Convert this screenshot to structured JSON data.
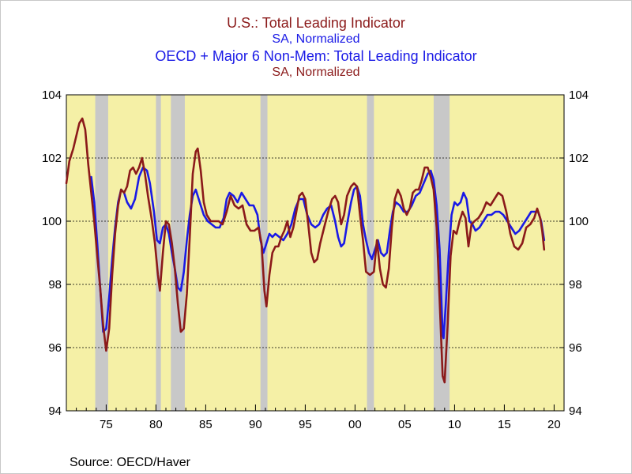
{
  "chart_data": {
    "type": "line",
    "title_lines": [
      {
        "text": "U.S.: Total Leading Indicator",
        "color": "#8b1a1a"
      },
      {
        "text": "SA, Normalized",
        "color": "#1a1ae6"
      },
      {
        "text": "OECD + Major 6 Non-Mem: Total Leading Indicator",
        "color": "#1a1ae6"
      },
      {
        "text": "SA, Normalized",
        "color": "#8b1a1a"
      }
    ],
    "source": "Source:  OECD/Haver",
    "xlim": [
      1971,
      2021
    ],
    "ylim": [
      94,
      104
    ],
    "x_ticks": [
      1975,
      1980,
      1985,
      1990,
      1995,
      2000,
      2005,
      2010,
      2015,
      2020
    ],
    "x_tick_labels": [
      "75",
      "80",
      "85",
      "90",
      "95",
      "00",
      "05",
      "10",
      "15",
      "20"
    ],
    "y_ticks": [
      94,
      96,
      98,
      100,
      102,
      104
    ],
    "y_tick_labels": [
      "94",
      "96",
      "98",
      "100",
      "102",
      "104"
    ],
    "grid": "horizontal dashed",
    "background_color": "#f5f0a6",
    "recessions": [
      [
        1973.9,
        1975.2
      ],
      [
        1980.0,
        1980.5
      ],
      [
        1981.5,
        1982.9
      ],
      [
        1990.5,
        1991.2
      ],
      [
        2001.2,
        2001.9
      ],
      [
        2007.9,
        2009.5
      ]
    ],
    "series": [
      {
        "name": "U.S.: Total Leading Indicator",
        "color": "#8b1a1a",
        "points": [
          [
            1971.0,
            101.2
          ],
          [
            1971.3,
            101.9
          ],
          [
            1971.7,
            102.3
          ],
          [
            1972.0,
            102.7
          ],
          [
            1972.3,
            103.1
          ],
          [
            1972.6,
            103.25
          ],
          [
            1972.9,
            102.9
          ],
          [
            1973.2,
            101.8
          ],
          [
            1973.5,
            100.9
          ],
          [
            1973.8,
            100.0
          ],
          [
            1974.1,
            98.9
          ],
          [
            1974.4,
            97.9
          ],
          [
            1974.7,
            96.7
          ],
          [
            1975.0,
            95.9
          ],
          [
            1975.3,
            96.6
          ],
          [
            1975.6,
            98.3
          ],
          [
            1975.9,
            99.6
          ],
          [
            1976.2,
            100.5
          ],
          [
            1976.5,
            101.0
          ],
          [
            1976.8,
            100.9
          ],
          [
            1977.1,
            101.1
          ],
          [
            1977.4,
            101.6
          ],
          [
            1977.7,
            101.7
          ],
          [
            1978.0,
            101.5
          ],
          [
            1978.3,
            101.7
          ],
          [
            1978.6,
            102.0
          ],
          [
            1978.9,
            101.5
          ],
          [
            1979.2,
            100.8
          ],
          [
            1979.6,
            100.0
          ],
          [
            1979.9,
            99.3
          ],
          [
            1980.2,
            98.3
          ],
          [
            1980.4,
            97.8
          ],
          [
            1980.7,
            99.0
          ],
          [
            1981.0,
            100.0
          ],
          [
            1981.3,
            99.9
          ],
          [
            1981.6,
            99.3
          ],
          [
            1981.9,
            98.5
          ],
          [
            1982.2,
            97.4
          ],
          [
            1982.5,
            96.5
          ],
          [
            1982.8,
            96.6
          ],
          [
            1983.1,
            97.7
          ],
          [
            1983.4,
            99.5
          ],
          [
            1983.7,
            101.5
          ],
          [
            1984.0,
            102.2
          ],
          [
            1984.2,
            102.3
          ],
          [
            1984.5,
            101.6
          ],
          [
            1984.8,
            100.6
          ],
          [
            1985.1,
            100.2
          ],
          [
            1985.5,
            100.0
          ],
          [
            1985.9,
            100.0
          ],
          [
            1986.3,
            100.0
          ],
          [
            1986.7,
            99.9
          ],
          [
            1987.1,
            100.3
          ],
          [
            1987.5,
            100.8
          ],
          [
            1987.9,
            100.5
          ],
          [
            1988.3,
            100.4
          ],
          [
            1988.7,
            100.5
          ],
          [
            1989.1,
            99.9
          ],
          [
            1989.5,
            99.7
          ],
          [
            1989.9,
            99.7
          ],
          [
            1990.3,
            99.8
          ],
          [
            1990.6,
            99.3
          ],
          [
            1990.9,
            97.8
          ],
          [
            1991.1,
            97.3
          ],
          [
            1991.4,
            98.3
          ],
          [
            1991.7,
            99.0
          ],
          [
            1992.0,
            99.2
          ],
          [
            1992.3,
            99.2
          ],
          [
            1992.6,
            99.5
          ],
          [
            1992.9,
            99.7
          ],
          [
            1993.2,
            100.0
          ],
          [
            1993.5,
            99.5
          ],
          [
            1993.8,
            99.8
          ],
          [
            1994.1,
            100.3
          ],
          [
            1994.4,
            100.8
          ],
          [
            1994.7,
            100.9
          ],
          [
            1995.0,
            100.7
          ],
          [
            1995.3,
            99.9
          ],
          [
            1995.6,
            99.0
          ],
          [
            1995.9,
            98.7
          ],
          [
            1996.2,
            98.8
          ],
          [
            1996.5,
            99.3
          ],
          [
            1996.9,
            99.8
          ],
          [
            1997.3,
            100.3
          ],
          [
            1997.7,
            100.7
          ],
          [
            1998.0,
            100.8
          ],
          [
            1998.3,
            100.6
          ],
          [
            1998.6,
            99.9
          ],
          [
            1998.9,
            100.2
          ],
          [
            1999.2,
            100.8
          ],
          [
            1999.6,
            101.1
          ],
          [
            1999.9,
            101.2
          ],
          [
            2000.2,
            101.1
          ],
          [
            2000.5,
            100.2
          ],
          [
            2000.8,
            99.4
          ],
          [
            2001.1,
            98.4
          ],
          [
            2001.5,
            98.3
          ],
          [
            2001.9,
            98.4
          ],
          [
            2002.2,
            99.4
          ],
          [
            2002.5,
            98.5
          ],
          [
            2002.8,
            98.0
          ],
          [
            2003.1,
            97.9
          ],
          [
            2003.4,
            98.5
          ],
          [
            2003.7,
            99.8
          ],
          [
            2004.0,
            100.7
          ],
          [
            2004.3,
            101.0
          ],
          [
            2004.6,
            100.8
          ],
          [
            2004.9,
            100.4
          ],
          [
            2005.2,
            100.2
          ],
          [
            2005.5,
            100.4
          ],
          [
            2005.8,
            100.9
          ],
          [
            2006.1,
            101.0
          ],
          [
            2006.4,
            101.0
          ],
          [
            2006.7,
            101.3
          ],
          [
            2007.0,
            101.7
          ],
          [
            2007.3,
            101.7
          ],
          [
            2007.6,
            101.4
          ],
          [
            2007.9,
            101.0
          ],
          [
            2008.2,
            99.8
          ],
          [
            2008.5,
            97.5
          ],
          [
            2008.8,
            95.1
          ],
          [
            2009.0,
            94.9
          ],
          [
            2009.3,
            96.7
          ],
          [
            2009.6,
            98.9
          ],
          [
            2009.9,
            99.7
          ],
          [
            2010.2,
            99.6
          ],
          [
            2010.5,
            100.0
          ],
          [
            2010.8,
            100.3
          ],
          [
            2011.1,
            100.1
          ],
          [
            2011.4,
            99.2
          ],
          [
            2011.7,
            99.9
          ],
          [
            2012.0,
            100.0
          ],
          [
            2012.4,
            100.1
          ],
          [
            2012.8,
            100.3
          ],
          [
            2013.2,
            100.6
          ],
          [
            2013.6,
            100.5
          ],
          [
            2014.0,
            100.7
          ],
          [
            2014.4,
            100.9
          ],
          [
            2014.8,
            100.8
          ],
          [
            2015.2,
            100.3
          ],
          [
            2015.6,
            99.6
          ],
          [
            2016.0,
            99.2
          ],
          [
            2016.4,
            99.1
          ],
          [
            2016.8,
            99.3
          ],
          [
            2017.2,
            99.8
          ],
          [
            2017.6,
            99.9
          ],
          [
            2018.0,
            100.1
          ],
          [
            2018.3,
            100.4
          ],
          [
            2018.6,
            100.1
          ],
          [
            2018.8,
            99.7
          ],
          [
            2019.0,
            99.1
          ]
        ]
      },
      {
        "name": "OECD + Major 6 Non-Mem: Total Leading Indicator",
        "color": "#1a1ae6",
        "points": [
          [
            1973.5,
            101.4
          ],
          [
            1973.8,
            100.6
          ],
          [
            1974.1,
            99.3
          ],
          [
            1974.4,
            97.9
          ],
          [
            1974.7,
            96.5
          ],
          [
            1975.0,
            96.6
          ],
          [
            1975.3,
            97.6
          ],
          [
            1975.6,
            98.8
          ],
          [
            1975.9,
            99.8
          ],
          [
            1976.2,
            100.6
          ],
          [
            1976.5,
            101.0
          ],
          [
            1976.8,
            100.9
          ],
          [
            1977.1,
            100.6
          ],
          [
            1977.5,
            100.4
          ],
          [
            1977.9,
            100.7
          ],
          [
            1978.3,
            101.4
          ],
          [
            1978.7,
            101.7
          ],
          [
            1979.1,
            101.6
          ],
          [
            1979.4,
            101.2
          ],
          [
            1979.8,
            100.3
          ],
          [
            1980.1,
            99.4
          ],
          [
            1980.4,
            99.3
          ],
          [
            1980.7,
            99.8
          ],
          [
            1981.0,
            99.9
          ],
          [
            1981.3,
            99.6
          ],
          [
            1981.6,
            99.0
          ],
          [
            1981.9,
            98.5
          ],
          [
            1982.2,
            97.9
          ],
          [
            1982.5,
            97.8
          ],
          [
            1982.8,
            98.4
          ],
          [
            1983.1,
            99.4
          ],
          [
            1983.4,
            100.2
          ],
          [
            1983.7,
            100.8
          ],
          [
            1984.0,
            101.0
          ],
          [
            1984.4,
            100.6
          ],
          [
            1984.8,
            100.2
          ],
          [
            1985.2,
            100.0
          ],
          [
            1985.6,
            99.9
          ],
          [
            1986.0,
            99.8
          ],
          [
            1986.4,
            99.8
          ],
          [
            1986.8,
            100.1
          ],
          [
            1987.1,
            100.7
          ],
          [
            1987.4,
            100.9
          ],
          [
            1987.8,
            100.8
          ],
          [
            1988.2,
            100.6
          ],
          [
            1988.6,
            100.9
          ],
          [
            1989.0,
            100.7
          ],
          [
            1989.4,
            100.5
          ],
          [
            1989.8,
            100.5
          ],
          [
            1990.2,
            100.2
          ],
          [
            1990.5,
            99.4
          ],
          [
            1990.8,
            99.0
          ],
          [
            1991.1,
            99.3
          ],
          [
            1991.4,
            99.6
          ],
          [
            1991.7,
            99.5
          ],
          [
            1992.0,
            99.6
          ],
          [
            1992.4,
            99.5
          ],
          [
            1992.8,
            99.4
          ],
          [
            1993.2,
            99.6
          ],
          [
            1993.6,
            99.9
          ],
          [
            1994.0,
            100.4
          ],
          [
            1994.4,
            100.7
          ],
          [
            1994.8,
            100.7
          ],
          [
            1995.2,
            100.2
          ],
          [
            1995.6,
            99.9
          ],
          [
            1996.0,
            99.8
          ],
          [
            1996.4,
            99.9
          ],
          [
            1996.8,
            100.2
          ],
          [
            1997.2,
            100.4
          ],
          [
            1997.6,
            100.5
          ],
          [
            1998.0,
            100.0
          ],
          [
            1998.3,
            99.5
          ],
          [
            1998.6,
            99.2
          ],
          [
            1998.9,
            99.3
          ],
          [
            1999.2,
            99.9
          ],
          [
            1999.6,
            100.6
          ],
          [
            1999.9,
            101.0
          ],
          [
            2000.2,
            101.1
          ],
          [
            2000.5,
            100.8
          ],
          [
            2000.8,
            99.9
          ],
          [
            2001.1,
            99.4
          ],
          [
            2001.4,
            99.0
          ],
          [
            2001.7,
            98.8
          ],
          [
            2002.0,
            99.1
          ],
          [
            2002.3,
            99.4
          ],
          [
            2002.6,
            99.0
          ],
          [
            2002.9,
            98.9
          ],
          [
            2003.2,
            99.0
          ],
          [
            2003.5,
            99.7
          ],
          [
            2003.8,
            100.3
          ],
          [
            2004.1,
            100.6
          ],
          [
            2004.5,
            100.5
          ],
          [
            2004.9,
            100.3
          ],
          [
            2005.3,
            100.3
          ],
          [
            2005.7,
            100.5
          ],
          [
            2006.1,
            100.8
          ],
          [
            2006.5,
            100.9
          ],
          [
            2006.9,
            101.2
          ],
          [
            2007.3,
            101.5
          ],
          [
            2007.6,
            101.6
          ],
          [
            2007.9,
            101.3
          ],
          [
            2008.2,
            100.5
          ],
          [
            2008.5,
            99.1
          ],
          [
            2008.8,
            96.4
          ],
          [
            2008.9,
            96.3
          ],
          [
            2009.1,
            97.3
          ],
          [
            2009.4,
            98.9
          ],
          [
            2009.7,
            100.2
          ],
          [
            2010.0,
            100.6
          ],
          [
            2010.3,
            100.5
          ],
          [
            2010.6,
            100.6
          ],
          [
            2010.9,
            100.9
          ],
          [
            2011.2,
            100.7
          ],
          [
            2011.5,
            100.0
          ],
          [
            2011.8,
            99.9
          ],
          [
            2012.1,
            99.7
          ],
          [
            2012.5,
            99.8
          ],
          [
            2012.9,
            100.0
          ],
          [
            2013.3,
            100.2
          ],
          [
            2013.7,
            100.2
          ],
          [
            2014.1,
            100.3
          ],
          [
            2014.5,
            100.3
          ],
          [
            2014.9,
            100.2
          ],
          [
            2015.3,
            100.0
          ],
          [
            2015.7,
            99.8
          ],
          [
            2016.1,
            99.6
          ],
          [
            2016.5,
            99.7
          ],
          [
            2016.9,
            99.9
          ],
          [
            2017.3,
            100.1
          ],
          [
            2017.7,
            100.3
          ],
          [
            2018.1,
            100.3
          ],
          [
            2018.4,
            100.3
          ],
          [
            2018.7,
            100.0
          ],
          [
            2019.0,
            99.4
          ]
        ]
      }
    ]
  }
}
